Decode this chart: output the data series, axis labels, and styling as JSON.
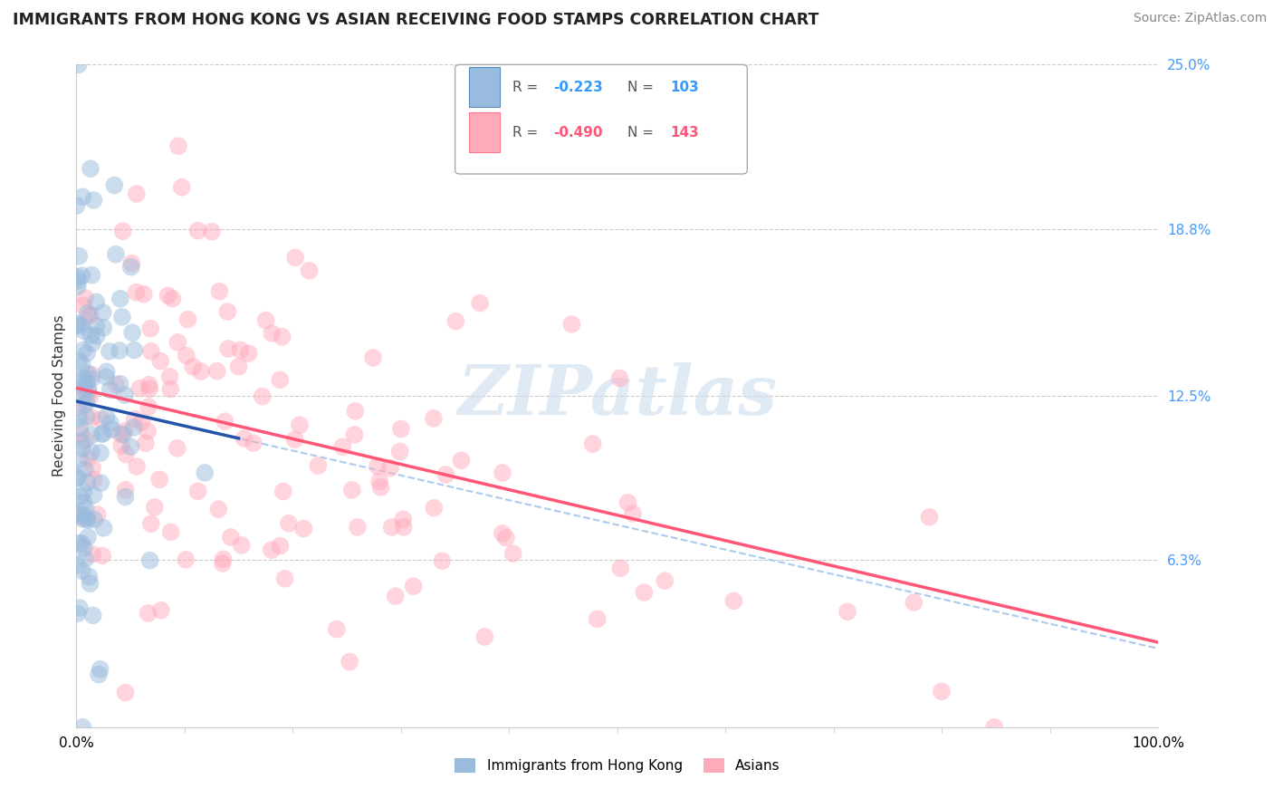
{
  "title": "IMMIGRANTS FROM HONG KONG VS ASIAN RECEIVING FOOD STAMPS CORRELATION CHART",
  "source": "Source: ZipAtlas.com",
  "ylabel": "Receiving Food Stamps",
  "y_tick_vals": [
    0.0,
    6.3,
    12.5,
    18.8,
    25.0
  ],
  "y_tick_labels": [
    "",
    "6.3%",
    "12.5%",
    "18.8%",
    "25.0%"
  ],
  "x_tick_vals": [
    0,
    100
  ],
  "x_tick_labels": [
    "0.0%",
    "100.0%"
  ],
  "watermark": "ZIPatlas",
  "blue_color": "#99BBDD",
  "pink_color": "#FFAABB",
  "blue_line_color": "#2255AA",
  "pink_line_color": "#FF5577",
  "blue_dash_color": "#AACCEE",
  "title_fontsize": 12.5,
  "source_fontsize": 10,
  "axis_label_fontsize": 11,
  "tick_fontsize": 11,
  "tick_color": "#4499FF",
  "background_color": "#FFFFFF",
  "grid_color": "#CCCCCC",
  "xlim": [
    0,
    100
  ],
  "ylim": [
    0,
    25
  ],
  "n_hk": 103,
  "n_asian": 143,
  "hk_seed": 77,
  "asian_seed": 55,
  "pink_line_x0": 12.8,
  "pink_line_x1": 3.2,
  "blue_line_x0": 12.3,
  "blue_line_x1": 9.5
}
